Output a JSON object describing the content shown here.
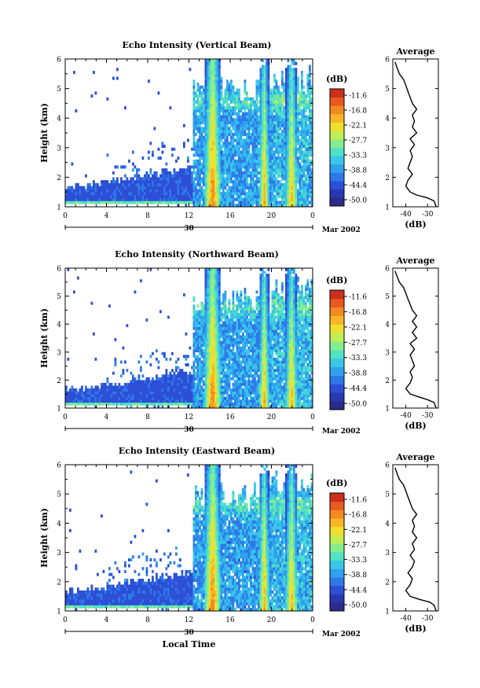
{
  "chart_data": [
    {
      "type": "heatmap",
      "title": "Echo Intensity (Vertical Beam)",
      "ylabel": "Height (km)",
      "xticks": [
        "0",
        "4",
        "8",
        "12",
        "16",
        "20",
        "0"
      ],
      "xlim_hours": [
        0,
        24
      ],
      "ylim": [
        1,
        6
      ],
      "yticks": [
        "1",
        "2",
        "3",
        "4",
        "5",
        "6"
      ],
      "date_axis": {
        "label": "30",
        "suffix": "Mar 2002"
      },
      "colorbar": {
        "unit": "(dB)",
        "ticks": [
          "-11.6",
          "-16.8",
          "-22.1",
          "-27.7",
          "-33.3",
          "-38.8",
          "-44.4",
          "-50.0"
        ],
        "range": [
          -55,
          -8
        ]
      },
      "precip_bands_hours": [
        [
          13.6,
          15.0
        ],
        [
          18.8,
          19.8
        ],
        [
          21.4,
          22.5
        ]
      ],
      "average_profile": {
        "title": "Average",
        "xlabel": "(dB)",
        "xticks": [
          "-40",
          "-30"
        ],
        "xlim": [
          -46,
          -25
        ],
        "ylim": [
          1,
          6
        ],
        "yticks": [
          "1",
          "2",
          "3",
          "4",
          "5",
          "6"
        ],
        "height": [
          1.0,
          1.2,
          1.3,
          1.4,
          1.5,
          1.7,
          1.9,
          2.1,
          2.3,
          2.5,
          2.7,
          2.9,
          3.1,
          3.3,
          3.5,
          3.7,
          3.9,
          4.1,
          4.3,
          4.5,
          4.7,
          4.9,
          5.1,
          5.3,
          5.5,
          5.7,
          5.9
        ],
        "dB": [
          -26,
          -27,
          -30,
          -35,
          -38,
          -40,
          -39,
          -37,
          -39,
          -38,
          -37,
          -38,
          -36,
          -38,
          -35,
          -37,
          -36,
          -37,
          -35,
          -37,
          -38,
          -39,
          -40,
          -41,
          -43,
          -44,
          -45
        ]
      }
    },
    {
      "type": "heatmap",
      "title": "Echo Intensity (Northward Beam)",
      "ylabel": "Height (km)",
      "xticks": [
        "0",
        "4",
        "8",
        "12",
        "16",
        "20",
        "0"
      ],
      "xlim_hours": [
        0,
        24
      ],
      "ylim": [
        1,
        6
      ],
      "yticks": [
        "1",
        "2",
        "3",
        "4",
        "5",
        "6"
      ],
      "date_axis": {
        "label": "30",
        "suffix": "Mar 2002"
      },
      "colorbar": {
        "unit": "(dB)",
        "ticks": [
          "-11.6",
          "-16.8",
          "-22.1",
          "-27.7",
          "-33.3",
          "-38.8",
          "-44.4",
          "-50.0"
        ],
        "range": [
          -55,
          -8
        ]
      },
      "precip_bands_hours": [
        [
          13.6,
          15.0
        ],
        [
          18.8,
          19.8
        ],
        [
          21.4,
          22.5
        ]
      ],
      "average_profile": {
        "title": "Average",
        "xlabel": "(dB)",
        "xticks": [
          "-40",
          "-30"
        ],
        "xlim": [
          -46,
          -25
        ],
        "ylim": [
          1,
          6
        ],
        "yticks": [
          "1",
          "2",
          "3",
          "4",
          "5",
          "6"
        ],
        "height": [
          1.0,
          1.2,
          1.3,
          1.4,
          1.5,
          1.7,
          1.9,
          2.1,
          2.3,
          2.5,
          2.7,
          2.9,
          3.1,
          3.3,
          3.5,
          3.7,
          3.9,
          4.1,
          4.3,
          4.5,
          4.7,
          4.9,
          5.1,
          5.3,
          5.5,
          5.7,
          5.9
        ],
        "dB": [
          -26,
          -27,
          -30,
          -34,
          -38,
          -40,
          -38,
          -37,
          -38,
          -36,
          -37,
          -38,
          -36,
          -38,
          -35,
          -37,
          -35,
          -37,
          -35,
          -37,
          -38,
          -39,
          -40,
          -41,
          -43,
          -44,
          -45
        ]
      }
    },
    {
      "type": "heatmap",
      "title": "Echo Intensity (Eastward Beam)",
      "ylabel": "Height (km)",
      "xticks": [
        "0",
        "4",
        "8",
        "12",
        "16",
        "20",
        "0"
      ],
      "xlim_hours": [
        0,
        24
      ],
      "ylim": [
        1,
        6
      ],
      "yticks": [
        "1",
        "2",
        "3",
        "4",
        "5",
        "6"
      ],
      "date_axis": {
        "label": "30",
        "suffix": "Mar 2002"
      },
      "xlabel": "Local Time",
      "colorbar": {
        "unit": "(dB)",
        "ticks": [
          "-11.6",
          "-16.8",
          "-22.1",
          "-27.7",
          "-33.3",
          "-38.8",
          "-44.4",
          "-50.0"
        ],
        "range": [
          -55,
          -8
        ]
      },
      "precip_bands_hours": [
        [
          13.6,
          15.0
        ],
        [
          18.8,
          19.8
        ],
        [
          21.4,
          22.5
        ]
      ],
      "average_profile": {
        "title": "Average",
        "xlabel": "(dB)",
        "xticks": [
          "-40",
          "-30"
        ],
        "xlim": [
          -46,
          -25
        ],
        "ylim": [
          1,
          6
        ],
        "yticks": [
          "1",
          "2",
          "3",
          "4",
          "5",
          "6"
        ],
        "height": [
          1.0,
          1.2,
          1.3,
          1.4,
          1.5,
          1.7,
          1.9,
          2.1,
          2.3,
          2.5,
          2.7,
          2.9,
          3.1,
          3.3,
          3.5,
          3.7,
          3.9,
          4.1,
          4.3,
          4.5,
          4.7,
          4.9,
          5.1,
          5.3,
          5.5,
          5.7,
          5.9
        ],
        "dB": [
          -26,
          -27,
          -29,
          -34,
          -38,
          -40,
          -38,
          -37,
          -39,
          -37,
          -36,
          -38,
          -36,
          -37,
          -35,
          -37,
          -36,
          -37,
          -35,
          -37,
          -38,
          -39,
          -40,
          -41,
          -43,
          -44,
          -45
        ]
      }
    }
  ]
}
